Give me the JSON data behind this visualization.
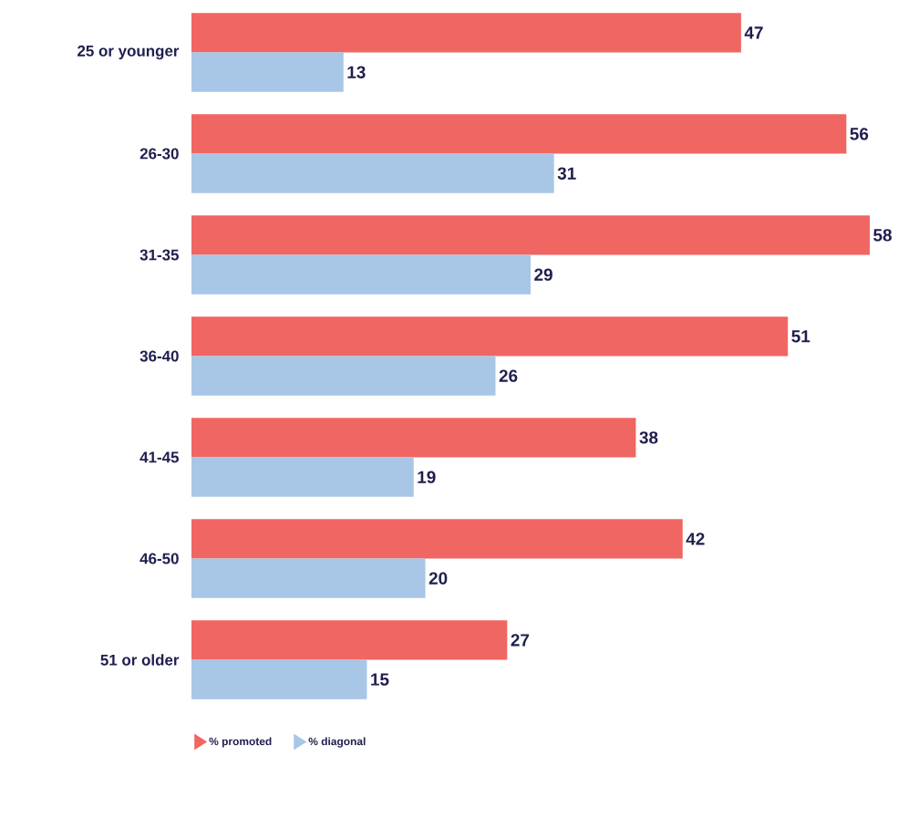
{
  "chart_data": {
    "type": "bar",
    "orientation": "horizontal",
    "categories": [
      "25 or younger",
      "26-30",
      "31-35",
      "36-40",
      "41-45",
      "46-50",
      "51 or older"
    ],
    "series": [
      {
        "name": "% promoted",
        "color": "#f06662",
        "values": [
          47,
          56,
          58,
          51,
          38,
          42,
          27
        ]
      },
      {
        "name": "% diagonal",
        "color": "#a8c6e6",
        "values": [
          13,
          31,
          29,
          26,
          19,
          20,
          15
        ]
      }
    ],
    "data_labels": true,
    "legend": "bottom left"
  }
}
